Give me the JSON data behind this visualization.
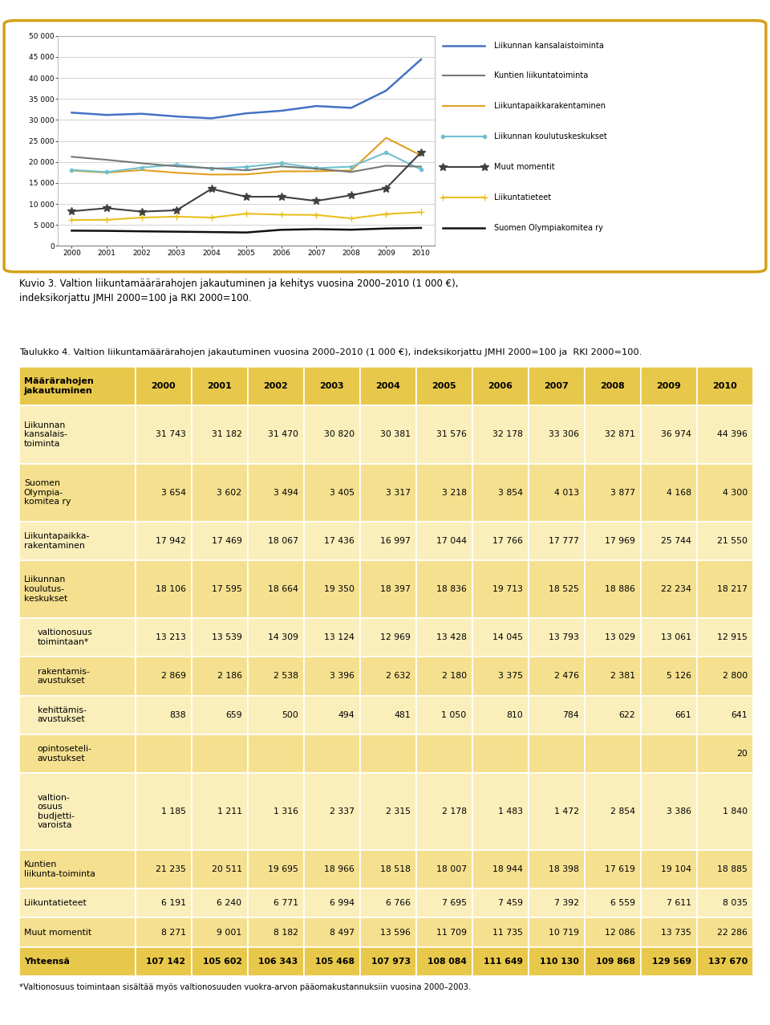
{
  "years": [
    2000,
    2001,
    2002,
    2003,
    2004,
    2005,
    2006,
    2007,
    2008,
    2009,
    2010
  ],
  "series_order": [
    "Liikunnan kansalaistoiminta",
    "Kuntien liikuntatoiminta",
    "Liikuntapaikkarakentaminen",
    "Liikunnan koulutuskeskukset",
    "Muut momentit",
    "Liikuntatieteet",
    "Suomen Olympiakomitea ry"
  ],
  "series": {
    "Liikunnan kansalaistoiminta": {
      "values": [
        31743,
        31182,
        31470,
        30820,
        30381,
        31576,
        32178,
        33306,
        32871,
        36974,
        44396
      ],
      "color": "#4472c4",
      "linewidth": 1.8,
      "marker": null,
      "markersize": 4,
      "zorder": 5
    },
    "Kuntien liikuntatoiminta": {
      "values": [
        21235,
        20511,
        19695,
        18966,
        18518,
        18007,
        18944,
        18398,
        17619,
        19104,
        18885
      ],
      "color": "#777777",
      "linewidth": 1.5,
      "marker": null,
      "markersize": 4,
      "zorder": 4
    },
    "Liikuntapaikkarakentaminen": {
      "values": [
        17942,
        17469,
        18067,
        17436,
        16997,
        17044,
        17766,
        17777,
        17969,
        25744,
        21550
      ],
      "color": "#e0a020",
      "linewidth": 1.5,
      "marker": null,
      "markersize": 4,
      "zorder": 3
    },
    "Liikunnan koulutuskeskukset": {
      "values": [
        18106,
        17595,
        18664,
        19350,
        18397,
        18836,
        19713,
        18525,
        18886,
        22234,
        18217
      ],
      "color": "#70c0d0",
      "linewidth": 1.5,
      "marker": "o",
      "markersize": 3,
      "zorder": 3
    },
    "Muut momentit": {
      "values": [
        8271,
        9001,
        8182,
        8497,
        13596,
        11709,
        11735,
        10719,
        12086,
        13735,
        22286
      ],
      "color": "#404040",
      "linewidth": 1.5,
      "marker": "*",
      "markersize": 7,
      "zorder": 6
    },
    "Liikuntatieteet": {
      "values": [
        6191,
        6240,
        6771,
        6994,
        6766,
        7695,
        7459,
        7392,
        6559,
        7611,
        8035
      ],
      "color": "#e8c020",
      "linewidth": 1.5,
      "marker": "+",
      "markersize": 6,
      "zorder": 3
    },
    "Suomen Olympiakomitea ry": {
      "values": [
        3654,
        3602,
        3494,
        3405,
        3317,
        3218,
        3854,
        4013,
        3877,
        4168,
        4300
      ],
      "color": "#101010",
      "linewidth": 1.8,
      "marker": null,
      "markersize": 4,
      "zorder": 4
    }
  },
  "ylim": [
    0,
    50000
  ],
  "yticks": [
    0,
    5000,
    10000,
    15000,
    20000,
    25000,
    30000,
    35000,
    40000,
    45000,
    50000
  ],
  "border_color": "#d4a017",
  "fig_caption_line1": "Kuvio 3. Valtion liikuntamäärärahojen jakautuminen ja kehitys vuosina 2000–2010 (1 000 €),",
  "fig_caption_line2": "indeksikorjattu JMHI 2000=100 ja RKI 2000=100.",
  "table_title": "Taulukko 4. Valtion liikuntamäärärahojen jakautuminen vuosina 2000–2010 (1 000 €), indeksikorjattu JMHI 2000=100 ja  RKI 2000=100.",
  "table_years": [
    "2000",
    "2001",
    "2002",
    "2003",
    "2004",
    "2005",
    "2006",
    "2007",
    "2008",
    "2009",
    "2010"
  ],
  "table_rows": [
    {
      "label": "Määrärahojen\njakautuminen",
      "values": [
        "2000",
        "2001",
        "2002",
        "2003",
        "2004",
        "2005",
        "2006",
        "2007",
        "2008",
        "2009",
        "2010"
      ],
      "type": "header"
    },
    {
      "label": "Liikunnan\nkansalais-\ntoiminta",
      "values": [
        "31 743",
        "31 182",
        "31 470",
        "30 820",
        "30 381",
        "31 576",
        "32 178",
        "33 306",
        "32 871",
        "36 974",
        "44 396"
      ],
      "type": "main_light"
    },
    {
      "label": "Suomen\nOlympia-\nkomitea ry",
      "values": [
        "3 654",
        "3 602",
        "3 494",
        "3 405",
        "3 317",
        "3 218",
        "3 854",
        "4 013",
        "3 877",
        "4 168",
        "4 300"
      ],
      "type": "main_dark"
    },
    {
      "label": "Liikuntapaikka-\nrakentaminen",
      "values": [
        "17 942",
        "17 469",
        "18 067",
        "17 436",
        "16 997",
        "17 044",
        "17 766",
        "17 777",
        "17 969",
        "25 744",
        "21 550"
      ],
      "type": "main_light"
    },
    {
      "label": "Liikunnan\nkoulutus-\nkeskukset",
      "values": [
        "18 106",
        "17 595",
        "18 664",
        "19 350",
        "18 397",
        "18 836",
        "19 713",
        "18 525",
        "18 886",
        "22 234",
        "18 217"
      ],
      "type": "main_dark"
    },
    {
      "label": "valtionosuus\ntoimintaan*",
      "values": [
        "13 213",
        "13 539",
        "14 309",
        "13 124",
        "12 969",
        "13 428",
        "14 045",
        "13 793",
        "13 029",
        "13 061",
        "12 915"
      ],
      "type": "sub_light"
    },
    {
      "label": "rakentamis-\navustukset",
      "values": [
        "2 869",
        "2 186",
        "2 538",
        "3 396",
        "2 632",
        "2 180",
        "3 375",
        "2 476",
        "2 381",
        "5 126",
        "2 800"
      ],
      "type": "sub_dark"
    },
    {
      "label": "kehittämis-\navustukset",
      "values": [
        "838",
        "659",
        "500",
        "494",
        "481",
        "1 050",
        "810",
        "784",
        "622",
        "661",
        "641"
      ],
      "type": "sub_light"
    },
    {
      "label": "opintoseteli-\navustukset",
      "values": [
        "",
        "",
        "",
        "",
        "",
        "",
        "",
        "",
        "",
        "",
        "20"
      ],
      "type": "sub_dark"
    },
    {
      "label": "valtion-\nosuus\nbudjetti-\nvaroista",
      "values": [
        "1 185",
        "1 211",
        "1 316",
        "2 337",
        "2 315",
        "2 178",
        "1 483",
        "1 472",
        "2 854",
        "3 386",
        "1 840"
      ],
      "type": "sub_light"
    },
    {
      "label": "Kuntien\nliikunta-toiminta",
      "values": [
        "21 235",
        "20 511",
        "19 695",
        "18 966",
        "18 518",
        "18 007",
        "18 944",
        "18 398",
        "17 619",
        "19 104",
        "18 885"
      ],
      "type": "main_dark"
    },
    {
      "label": "Liikuntatieteet",
      "values": [
        "6 191",
        "6 240",
        "6 771",
        "6 994",
        "6 766",
        "7 695",
        "7 459",
        "7 392",
        "6 559",
        "7 611",
        "8 035"
      ],
      "type": "main_light"
    },
    {
      "label": "Muut momentit",
      "values": [
        "8 271",
        "9 001",
        "8 182",
        "8 497",
        "13 596",
        "11 709",
        "11 735",
        "10 719",
        "12 086",
        "13 735",
        "22 286"
      ],
      "type": "main_dark"
    },
    {
      "label": "Yhteensä",
      "values": [
        "107 142",
        "105 602",
        "106 343",
        "105 468",
        "107 973",
        "108 084",
        "111 649",
        "110 130",
        "109 868",
        "129 569",
        "137 670"
      ],
      "type": "total"
    }
  ],
  "table_footnote": "*Valtionosuus toimintaan sisältää myös valtionosuuden vuokra-arvon pääomakustannuksiin vuosina 2000–2003.",
  "color_header": "#e8c84a",
  "color_main_light": "#faeebb",
  "color_main_dark": "#f5e090",
  "color_sub_light": "#faeebb",
  "color_sub_dark": "#f5e090",
  "color_total": "#e8c84a"
}
